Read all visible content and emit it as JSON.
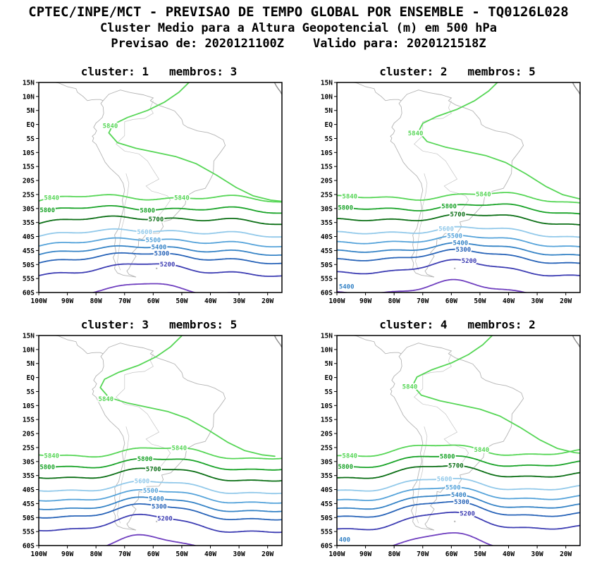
{
  "header": {
    "line1": "CPTEC/INPE/MCT - PREVISAO DE TEMPO GLOBAL POR ENSEMBLE - TQ0126L028",
    "line2": "Cluster Medio para a Altura Geopotencial (m) em 500 hPa",
    "line3": "Previsao de: 2020121100Z    Valido para: 2020121518Z"
  },
  "panels": [
    {
      "title": "cluster: 1   membros: 3",
      "cluster": 1,
      "membros": 3,
      "corner_label": ""
    },
    {
      "title": "cluster: 2   membros: 5",
      "cluster": 2,
      "membros": 5,
      "corner_label": "5400"
    },
    {
      "title": "cluster: 3   membros: 5",
      "cluster": 3,
      "membros": 5,
      "corner_label": ""
    },
    {
      "title": "cluster: 4   membros: 2",
      "cluster": 4,
      "membros": 2,
      "corner_label": "400"
    }
  ],
  "axes": {
    "lat_ticks": [
      "15N",
      "10N",
      "5N",
      "EQ",
      "5S",
      "10S",
      "15S",
      "20S",
      "25S",
      "30S",
      "35S",
      "40S",
      "45S",
      "50S",
      "55S",
      "60S"
    ],
    "lon_ticks": [
      "100W",
      "90W",
      "80W",
      "70W",
      "60W",
      "50W",
      "40W",
      "30W",
      "20W"
    ]
  },
  "chart_data": {
    "type": "contour",
    "title": "Cluster Medio para a Altura Geopotencial (m) em 500 hPa",
    "variable": "500 hPa geopotential height (m), ensemble cluster mean",
    "model": "CPTEC/INPE/MCT PREVISAO DE TEMPO GLOBAL POR ENSEMBLE TQ0126L028",
    "init_time": "2020121100Z",
    "valid_time": "2020121518Z",
    "region": {
      "lon_range": [
        "100W",
        "15W"
      ],
      "lat_range": [
        "15N",
        "60S"
      ]
    },
    "panels": [
      {
        "cluster": 1,
        "members": 3
      },
      {
        "cluster": 2,
        "members": 5
      },
      {
        "cluster": 3,
        "members": 5
      },
      {
        "cluster": 4,
        "members": 2
      }
    ],
    "levels": [
      {
        "label": "5840",
        "color": "#56d656"
      },
      {
        "label": "5800",
        "color": "#18a327"
      },
      {
        "label": "5700",
        "color": "#0a6e14"
      },
      {
        "label": "5600",
        "color": "#92c9ea"
      },
      {
        "label": "5500",
        "color": "#55a3da"
      },
      {
        "label": "5400",
        "color": "#3583c6"
      },
      {
        "label": "5300",
        "color": "#2763b8"
      },
      {
        "label": "5200",
        "color": "#3d3db3"
      },
      {
        "label": "",
        "color": "#6f3fbf"
      }
    ]
  },
  "colors": {
    "coast": "#b4b4b4",
    "border": "#000000",
    "text": "#000000"
  }
}
